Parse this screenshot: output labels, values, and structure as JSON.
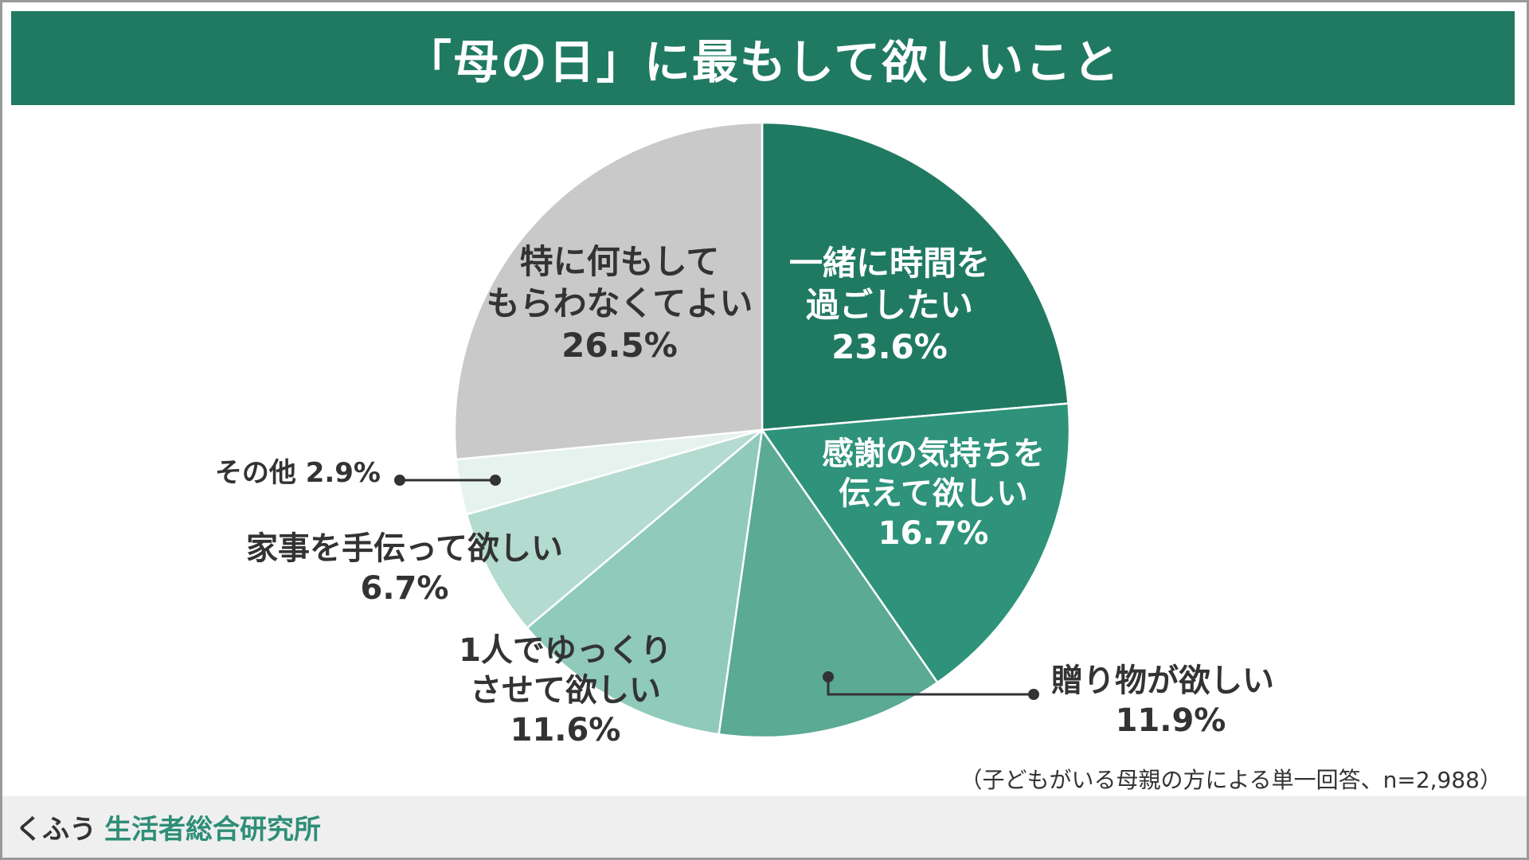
{
  "title": "「母の日」に最もして欲しいこと",
  "note": "（子どもがいる母親の方による単一回答、n=2,988）",
  "footer": {
    "brand_kana": "くふう",
    "brand_name": "生活者総合研究所"
  },
  "chart_data": {
    "type": "pie",
    "start": "12 o'clock",
    "direction": "clockwise",
    "slices": [
      {
        "label_lines": [
          "一緒に時間を",
          "過ごしたい"
        ],
        "value": 23.6,
        "value_text": "23.6%",
        "color": "#207a62",
        "label_color": "#ffffff"
      },
      {
        "label_lines": [
          "感謝の気持ちを",
          "伝えて欲しい"
        ],
        "value": 16.7,
        "value_text": "16.7%",
        "color": "#2e937a",
        "label_color": "#ffffff"
      },
      {
        "label_lines": [
          "贈り物が欲しい"
        ],
        "value": 11.9,
        "value_text": "11.9%",
        "color": "#5aaa94",
        "label_color": "#333333"
      },
      {
        "label_lines": [
          "1人でゆっくり",
          "させて欲しい"
        ],
        "value": 11.6,
        "value_text": "11.6%",
        "color": "#8fcaba",
        "label_color": "#333333"
      },
      {
        "label_lines": [
          "家事を手伝って欲しい"
        ],
        "value": 6.7,
        "value_text": "6.7%",
        "color": "#b3dbd0",
        "label_color": "#333333"
      },
      {
        "label_lines": [
          "その他"
        ],
        "value": 2.9,
        "value_text": "2.9%",
        "color": "#e6f2ee",
        "label_color": "#333333"
      },
      {
        "label_lines": [
          "特に何もして",
          "もらわなくてよい"
        ],
        "value": 26.5,
        "value_text": "26.5%",
        "color": "#c9c9c9",
        "label_color": "#333333"
      }
    ]
  }
}
